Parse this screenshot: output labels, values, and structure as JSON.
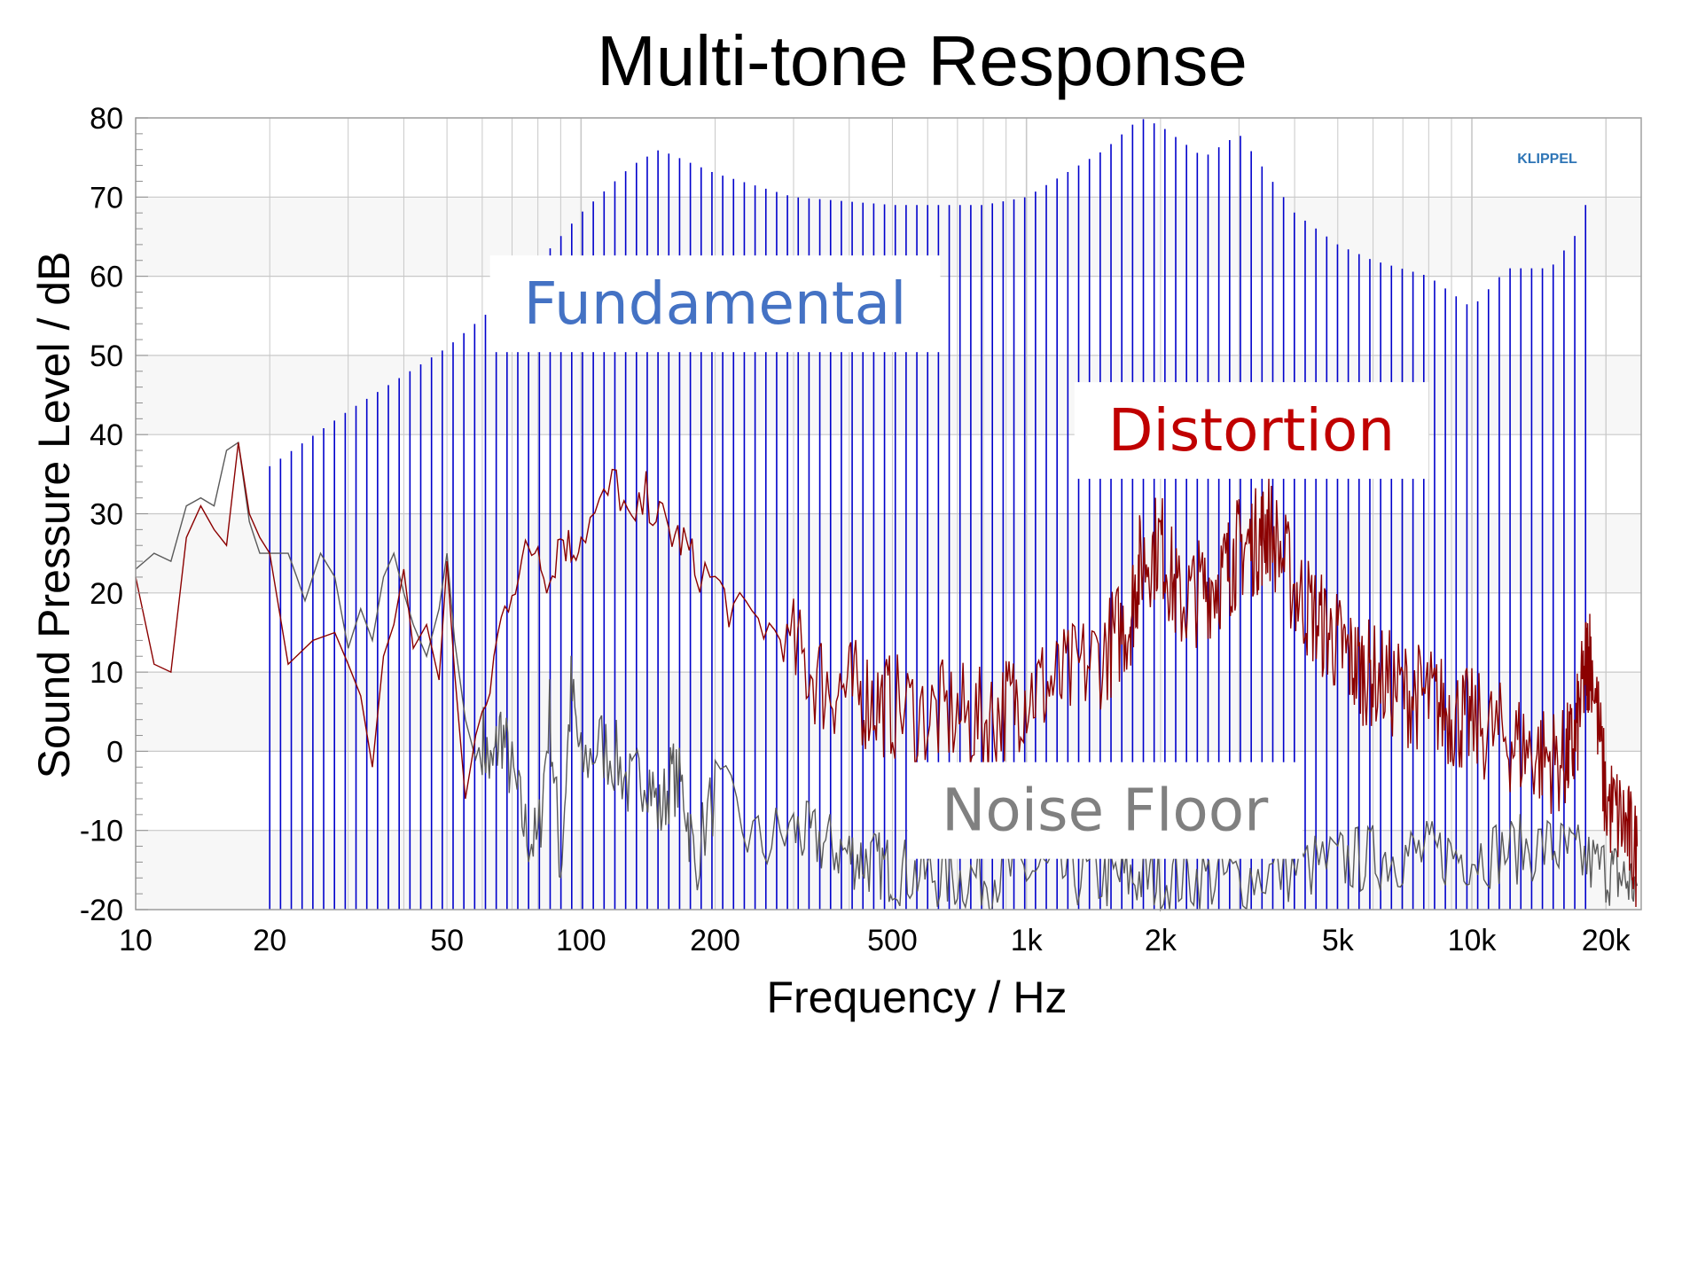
{
  "chart_data": {
    "type": "line",
    "title": "Multi-tone Response",
    "xlabel": "Frequency / Hz",
    "ylabel": "Sound Pressure Level / dB",
    "xscale": "log",
    "xlim": [
      10,
      24000
    ],
    "ylim": [
      -20,
      80
    ],
    "grid": true,
    "brand": "KLIPPEL",
    "x_ticks": [
      {
        "value": 10,
        "label": "10"
      },
      {
        "value": 20,
        "label": "20"
      },
      {
        "value": 50,
        "label": "50"
      },
      {
        "value": 100,
        "label": "100"
      },
      {
        "value": 200,
        "label": "200"
      },
      {
        "value": 500,
        "label": "500"
      },
      {
        "value": 1000,
        "label": "1k"
      },
      {
        "value": 2000,
        "label": "2k"
      },
      {
        "value": 5000,
        "label": "5k"
      },
      {
        "value": 10000,
        "label": "10k"
      },
      {
        "value": 20000,
        "label": "20k"
      }
    ],
    "y_ticks": [
      80,
      70,
      60,
      50,
      40,
      30,
      20,
      10,
      0,
      -10,
      -20
    ],
    "annotations": [
      {
        "text": "Fundamental",
        "color": "#4472c4",
        "x": 200,
        "y": 54
      },
      {
        "text": "Distortion",
        "color": "#c00000",
        "x": 3200,
        "y": 38
      },
      {
        "text": "Noise Floor",
        "color": "#808080",
        "x": 1500,
        "y": -10
      }
    ],
    "series": [
      {
        "name": "Fundamental",
        "style": "stems",
        "color": "#0000cc",
        "envelope_x": [
          20,
          30,
          50,
          70,
          100,
          130,
          150,
          200,
          300,
          500,
          800,
          1000,
          1500,
          1800,
          2000,
          2500,
          3000,
          4000,
          5000,
          6000,
          8000,
          10000,
          12000,
          15000,
          17000,
          18000
        ],
        "envelope_y": [
          36,
          43,
          51,
          58,
          68,
          74,
          76,
          73,
          70,
          69,
          69,
          70,
          76,
          80,
          79,
          75,
          78,
          68,
          64,
          62,
          60,
          56,
          61,
          61,
          65,
          69
        ]
      },
      {
        "name": "Distortion",
        "style": "line",
        "color": "#8b0000",
        "x": [
          10,
          11,
          12,
          13,
          14,
          15,
          16,
          17,
          18,
          19,
          20,
          22,
          25,
          28,
          30,
          32,
          34,
          36,
          38,
          40,
          42,
          45,
          48,
          50,
          52,
          55,
          58,
          60,
          65,
          70,
          75,
          80,
          85,
          90,
          95,
          100,
          110,
          120,
          130,
          140,
          150,
          160,
          170,
          180,
          200,
          220,
          250,
          280,
          300,
          350,
          400,
          450,
          500,
          600,
          700,
          800,
          900,
          1000,
          1200,
          1500,
          1700,
          1800,
          2000,
          2200,
          2500,
          2800,
          3000,
          3300,
          3500,
          4000,
          4500,
          5000,
          5500,
          6000,
          7000,
          8000,
          9000,
          10000,
          12000,
          14000,
          16000,
          17000,
          18000,
          18500,
          20000,
          22000,
          23500
        ],
        "y": [
          22,
          11,
          10,
          27,
          31,
          28,
          26,
          39,
          30,
          27,
          25,
          11,
          14,
          15,
          11,
          7,
          -2,
          12,
          16,
          23,
          13,
          16,
          9,
          24,
          10,
          -6,
          2,
          3,
          15,
          22,
          25,
          27,
          22,
          28,
          26,
          28,
          31,
          35,
          28,
          33,
          30,
          28,
          27,
          24,
          22,
          18,
          17,
          15,
          14,
          10,
          9,
          8,
          7,
          6,
          6,
          5,
          7,
          9,
          10,
          14,
          18,
          25,
          28,
          20,
          22,
          24,
          27,
          28,
          30,
          22,
          18,
          15,
          12,
          11,
          9,
          8,
          6,
          5,
          3,
          1,
          0,
          2,
          12,
          14,
          -5,
          -8,
          -12
        ]
      },
      {
        "name": "Noise Floor",
        "style": "line",
        "color": "#5a5a5a",
        "x": [
          10,
          11,
          12,
          13,
          14,
          15,
          16,
          17,
          18,
          19,
          20,
          22,
          23,
          24,
          26,
          28,
          30,
          32,
          34,
          36,
          38,
          40,
          42,
          45,
          48,
          50,
          52,
          55,
          58,
          60,
          63,
          66,
          70,
          75,
          80,
          85,
          90,
          95,
          100,
          110,
          120,
          130,
          140,
          150,
          160,
          170,
          180,
          200,
          250,
          300,
          400,
          500,
          700,
          1000,
          1500,
          2000,
          3000,
          5000,
          7000,
          10000,
          15000,
          20000,
          23500
        ],
        "y": [
          23,
          25,
          24,
          31,
          32,
          31,
          38,
          39,
          29,
          25,
          25,
          25,
          22,
          19,
          25,
          22,
          13,
          18,
          14,
          22,
          25,
          20,
          16,
          12,
          18,
          25,
          14,
          4,
          -1,
          2,
          -3,
          3,
          -3,
          -10,
          -12,
          5,
          -15,
          8,
          -2,
          1,
          -1,
          -5,
          -2,
          -8,
          -3,
          -5,
          -14,
          -5,
          -12,
          -10,
          -13,
          -15,
          -16,
          -15,
          -16,
          -16,
          -16,
          -14,
          -13,
          -13,
          -12,
          -15,
          -17
        ]
      }
    ]
  }
}
